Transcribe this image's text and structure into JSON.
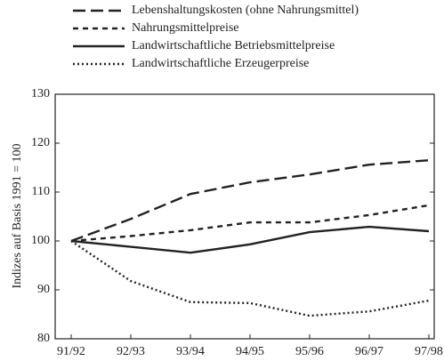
{
  "chart_data": {
    "type": "line",
    "y_label": "Indizes auf Basis 1991 = 100",
    "categories": [
      "91/92",
      "92/93",
      "93/94",
      "94/95",
      "95/96",
      "96/97",
      "97/98"
    ],
    "series": [
      {
        "name": "Lebenshaltungskosten (ohne Nahrungsmittel)",
        "color": "#222222",
        "linestyle": "dashed",
        "values": [
          100,
          104.5,
          109.6,
          112,
          113.6,
          115.6,
          116.5
        ]
      },
      {
        "name": "Nahrungsmittelpreise",
        "color": "#222222",
        "linestyle": "short-dashed",
        "values": [
          100,
          101,
          102.2,
          103.8,
          103.8,
          105.3,
          107.3
        ]
      },
      {
        "name": "Landwirtschaftliche Betriebsmittelpreise",
        "color": "#222222",
        "linestyle": "solid",
        "values": [
          100,
          98.8,
          97.6,
          99.3,
          101.8,
          102.9,
          102
        ]
      },
      {
        "name": "Landwirtschaftliche Erzeugerpreise",
        "color": "#222222",
        "linestyle": "dotted",
        "values": [
          100,
          91.8,
          87.5,
          87.3,
          84.7,
          85.6,
          87.8
        ]
      }
    ],
    "ylim": [
      80,
      130
    ],
    "yticks": [
      80,
      90,
      100,
      110,
      120,
      130
    ],
    "grid": false
  }
}
